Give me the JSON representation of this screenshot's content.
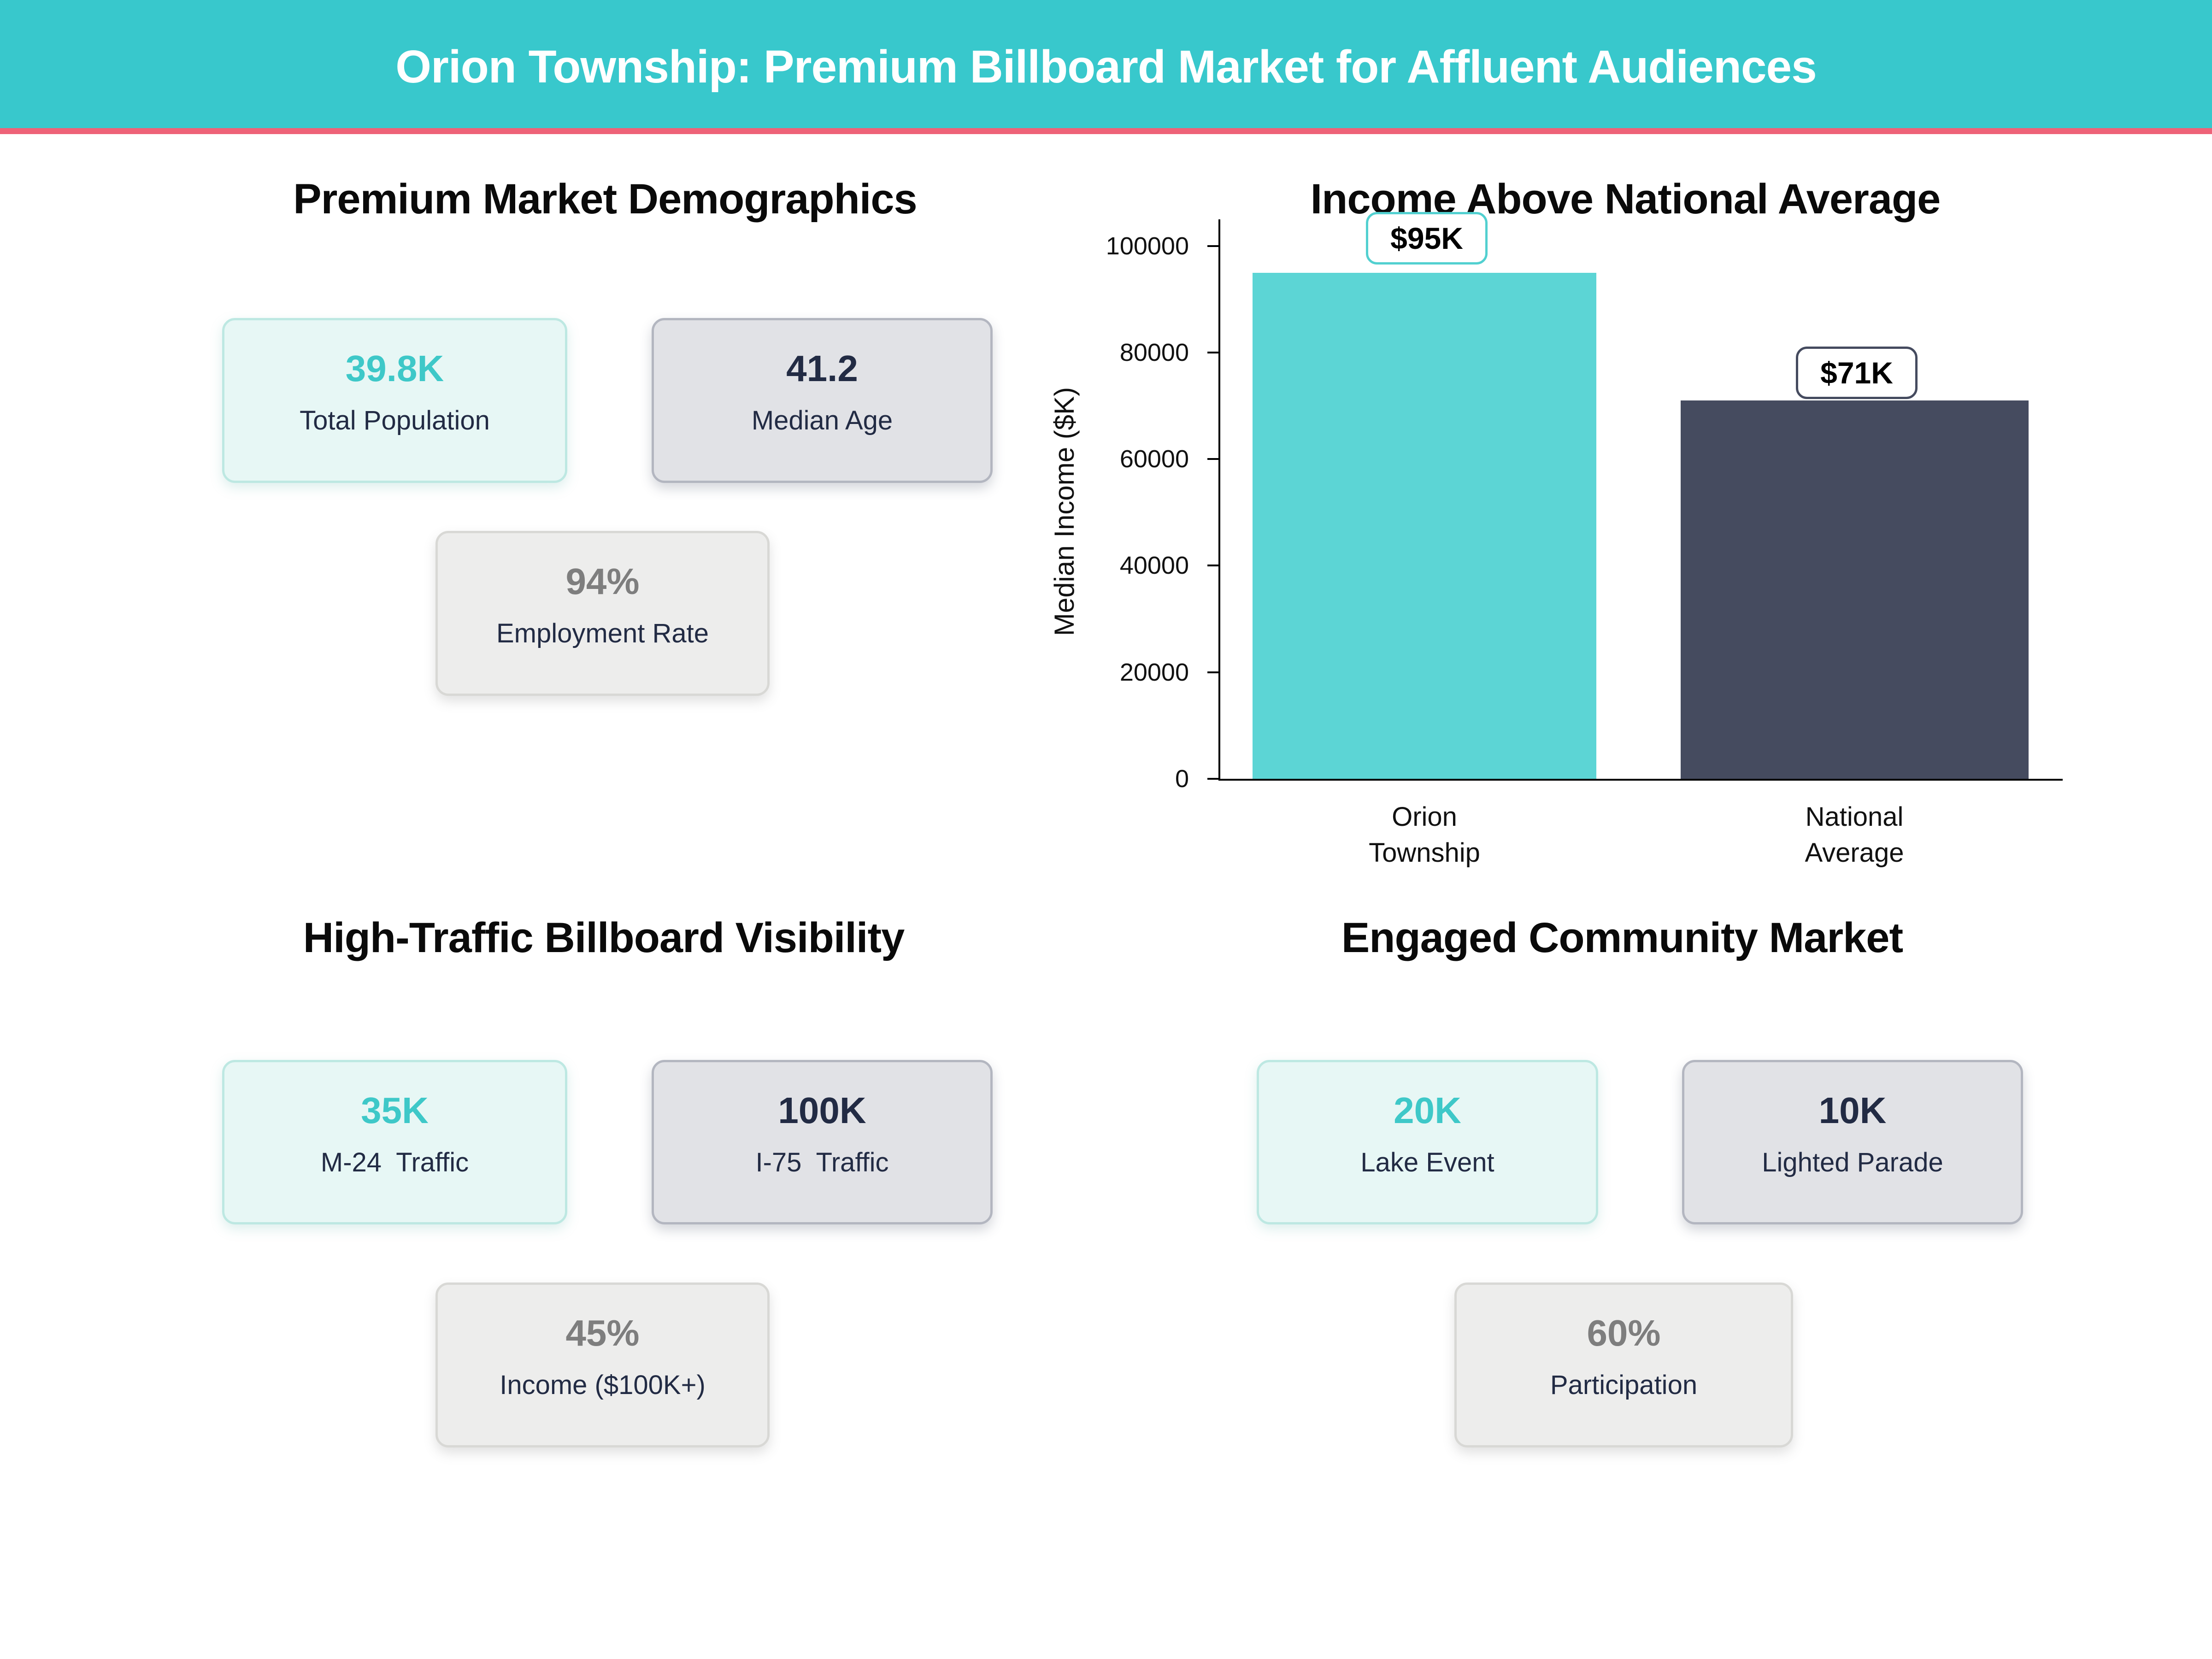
{
  "header": {
    "title": "Orion Township: Premium Billboard Market for Affluent Audiences"
  },
  "colors": {
    "header_bg": "#38C8CC",
    "stripe": "#EE6278",
    "teal_accent": "#3EC8C8",
    "navy": "#222B44",
    "gray_value": "#7E7E7E"
  },
  "sections": {
    "demographics": {
      "title": "Premium Market Demographics",
      "cards": [
        {
          "value": "39.8K",
          "label": "Total Population"
        },
        {
          "value": "41.2",
          "label": "Median Age"
        },
        {
          "value": "94%",
          "label": "Employment Rate"
        }
      ]
    },
    "traffic": {
      "title": "High-Traffic Billboard Visibility",
      "cards": [
        {
          "value": "35K",
          "label": "M-24  Traffic"
        },
        {
          "value": "100K",
          "label": "I-75  Traffic"
        },
        {
          "value": "45%",
          "label": "Income ($100K+)"
        }
      ]
    },
    "community": {
      "title": "Engaged Community Market",
      "cards": [
        {
          "value": "20K",
          "label": "Lake Event"
        },
        {
          "value": "10K",
          "label": "Lighted Parade"
        },
        {
          "value": "60%",
          "label": "Participation"
        }
      ]
    }
  },
  "chart_data": {
    "type": "bar",
    "title": "Income Above National Average",
    "ylabel": "Median Income ($K)",
    "categories": [
      [
        "Orion",
        "Township"
      ],
      [
        "National",
        "Average"
      ]
    ],
    "values": [
      95000,
      71000
    ],
    "bar_labels": [
      "$95K",
      "$71K"
    ],
    "bar_colors": [
      "#5CD5D5",
      "#454B5F"
    ],
    "annotation_border_colors": [
      "#52D0D0",
      "#454B5F"
    ],
    "ytick_labels": [
      "0",
      "20000",
      "40000",
      "60000",
      "80000",
      "100000"
    ],
    "ylim": [
      0,
      105000
    ],
    "grid": false,
    "legend": null
  }
}
